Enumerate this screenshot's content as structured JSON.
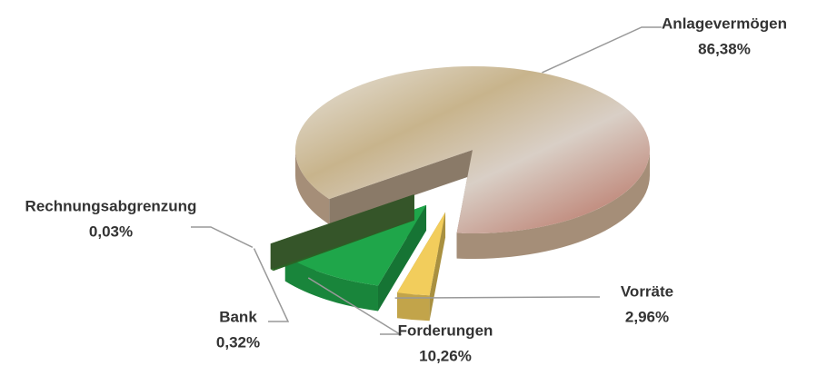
{
  "chart_data": {
    "type": "pie",
    "categories": [
      "Anlagevermögen",
      "Vorräte",
      "Forderungen",
      "Bank",
      "Rechnungsabgrenzung"
    ],
    "values": [
      86.38,
      2.96,
      10.26,
      0.32,
      0.03
    ],
    "value_labels": [
      "86,38%",
      "2,96%",
      "10,26%",
      "0,32%",
      "0,03%"
    ],
    "colors": [
      "#c9c0b4",
      "#f2cd5c",
      "#1fa64a",
      "#3f8a35",
      "#4c7a3a"
    ]
  }
}
